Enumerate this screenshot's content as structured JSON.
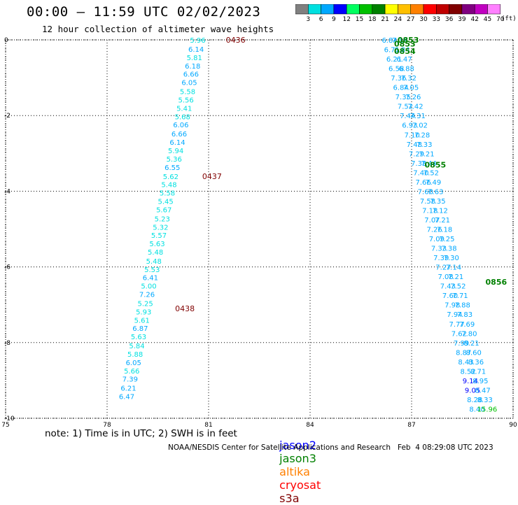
{
  "title": "00:00 – 11:59 UTC 02/02/2023",
  "subtitle": "12 hour collection of altimeter wave heights",
  "colorbar": {
    "unit": "(ft)",
    "bins": [
      {
        "label": "3",
        "color": "#808080"
      },
      {
        "label": "6",
        "color": "#00e0e0"
      },
      {
        "label": "9",
        "color": "#00a8ff"
      },
      {
        "label": "12",
        "color": "#0000ff"
      },
      {
        "label": "15",
        "color": "#00ff60"
      },
      {
        "label": "18",
        "color": "#00c000"
      },
      {
        "label": "21",
        "color": "#008000"
      },
      {
        "label": "24",
        "color": "#ffff00"
      },
      {
        "label": "27",
        "color": "#ffc000"
      },
      {
        "label": "30",
        "color": "#ff8000"
      },
      {
        "label": "33",
        "color": "#ff0000"
      },
      {
        "label": "36",
        "color": "#c00000"
      },
      {
        "label": "39",
        "color": "#800000"
      },
      {
        "label": "42",
        "color": "#800080"
      },
      {
        "label": "45",
        "color": "#c000c0"
      },
      {
        "label": "70",
        "color": "#ff80ff"
      }
    ]
  },
  "note": "note: 1) Time is in UTC; 2) SWH is in feet",
  "satellites": [
    {
      "name": "jason2",
      "color": "#0000ff"
    },
    {
      "name": "jason3",
      "color": "#008000"
    },
    {
      "name": "altika",
      "color": "#ff8000"
    },
    {
      "name": "cryosat",
      "color": "#ff0000"
    },
    {
      "name": "s3a",
      "color": "#800000"
    }
  ],
  "credit": "NOAA/NESDIS Center for Satellite Applications and Research   Feb  4 08:29:08 UTC 2023",
  "chart_data": {
    "type": "scatter",
    "xlim": [
      75,
      90
    ],
    "ylim": [
      -10,
      0
    ],
    "x_ticks": [
      "75",
      "78",
      "81",
      "84",
      "87",
      "90"
    ],
    "y_ticks": [
      "0",
      "-2",
      "-4",
      "-6",
      "-8",
      "-10"
    ],
    "grid": true,
    "series": [
      {
        "satellite": "s3a",
        "label_color": "#800000",
        "times": [
          {
            "label": "0436",
            "x": 81.8,
            "y": 0
          },
          {
            "label": "0437",
            "x": 81.1,
            "y": -3.6
          },
          {
            "label": "0438",
            "x": 80.3,
            "y": -7.1
          }
        ],
        "points": [
          {
            "x": 80.68,
            "y": 0.0,
            "swh": 5.96
          },
          {
            "x": 80.63,
            "y": -0.24,
            "swh": 6.14
          },
          {
            "x": 80.58,
            "y": -0.46,
            "swh": 5.81
          },
          {
            "x": 80.53,
            "y": -0.68,
            "swh": 6.18
          },
          {
            "x": 80.48,
            "y": -0.9,
            "swh": 6.66
          },
          {
            "x": 80.43,
            "y": -1.12,
            "swh": 6.05
          },
          {
            "x": 80.38,
            "y": -1.36,
            "swh": 5.58
          },
          {
            "x": 80.33,
            "y": -1.58,
            "swh": 5.56
          },
          {
            "x": 80.28,
            "y": -1.8,
            "swh": 5.41
          },
          {
            "x": 80.23,
            "y": -2.02,
            "swh": 5.68
          },
          {
            "x": 80.18,
            "y": -2.24,
            "swh": 6.06
          },
          {
            "x": 80.13,
            "y": -2.48,
            "swh": 6.66
          },
          {
            "x": 80.08,
            "y": -2.7,
            "swh": 6.14
          },
          {
            "x": 80.03,
            "y": -2.92,
            "swh": 5.94
          },
          {
            "x": 79.98,
            "y": -3.14,
            "swh": 5.36
          },
          {
            "x": 79.93,
            "y": -3.36,
            "swh": 6.55
          },
          {
            "x": 79.88,
            "y": -3.6,
            "swh": 5.62
          },
          {
            "x": 79.83,
            "y": -3.82,
            "swh": 5.48
          },
          {
            "x": 79.78,
            "y": -4.04,
            "swh": 5.58
          },
          {
            "x": 79.73,
            "y": -4.26,
            "swh": 5.45
          },
          {
            "x": 79.68,
            "y": -4.48,
            "swh": 5.67
          },
          {
            "x": 79.63,
            "y": -4.72,
            "swh": 5.23
          },
          {
            "x": 79.58,
            "y": -4.94,
            "swh": 5.32
          },
          {
            "x": 79.53,
            "y": -5.16,
            "swh": 5.57
          },
          {
            "x": 79.48,
            "y": -5.38,
            "swh": 5.63
          },
          {
            "x": 79.43,
            "y": -5.6,
            "swh": 5.48
          },
          {
            "x": 79.38,
            "y": -5.84,
            "swh": 5.48
          },
          {
            "x": 79.33,
            "y": -6.06,
            "swh": 5.53
          },
          {
            "x": 79.28,
            "y": -6.28,
            "swh": 6.41
          },
          {
            "x": 79.23,
            "y": -6.5,
            "swh": 5.0
          },
          {
            "x": 79.18,
            "y": -6.72,
            "swh": 7.26
          },
          {
            "x": 79.13,
            "y": -6.96,
            "swh": 5.25
          },
          {
            "x": 79.08,
            "y": -7.18,
            "swh": 5.93
          },
          {
            "x": 79.03,
            "y": -7.4,
            "swh": 5.61
          },
          {
            "x": 78.98,
            "y": -7.62,
            "swh": 6.87
          },
          {
            "x": 78.93,
            "y": -7.84,
            "swh": 5.63
          },
          {
            "x": 78.88,
            "y": -8.08,
            "swh": 5.84
          },
          {
            "x": 78.83,
            "y": -8.3,
            "swh": 5.88
          },
          {
            "x": 78.78,
            "y": -8.52,
            "swh": 6.05
          },
          {
            "x": 78.73,
            "y": -8.74,
            "swh": 5.66
          },
          {
            "x": 78.68,
            "y": -8.96,
            "swh": 7.39
          },
          {
            "x": 78.63,
            "y": -9.2,
            "swh": 6.21
          },
          {
            "x": 78.58,
            "y": -9.42,
            "swh": 6.47
          }
        ]
      },
      {
        "satellite": "jason3",
        "label_color": "#008000",
        "times": [
          {
            "label": "0853",
            "x": 86.9,
            "y": 0
          },
          {
            "label": "0853",
            "x": 86.8,
            "y": -0.1
          },
          {
            "label": "0854",
            "x": 86.8,
            "y": -0.3
          },
          {
            "label": "0855",
            "x": 87.7,
            "y": -3.3
          },
          {
            "label": "0856",
            "x": 89.5,
            "y": -6.4
          }
        ],
        "points_a": [
          {
            "y": 0.0,
            "swh": 6.84
          },
          {
            "y": -0.25,
            "swh": 6.71
          },
          {
            "y": -0.5,
            "swh": 6.21
          },
          {
            "y": -0.75,
            "swh": 6.58
          },
          {
            "y": -1.0,
            "swh": 7.36
          },
          {
            "y": -1.25,
            "swh": 6.84
          },
          {
            "y": -1.5,
            "swh": 7.35
          },
          {
            "y": -1.75,
            "swh": 7.52
          },
          {
            "y": -2.0,
            "swh": 7.44
          },
          {
            "y": -2.25,
            "swh": 6.93
          },
          {
            "y": -2.5,
            "swh": 7.1
          },
          {
            "y": -2.75,
            "swh": 7.48
          },
          {
            "y": -3.0,
            "swh": 7.29
          },
          {
            "y": -3.25,
            "swh": 7.38
          },
          {
            "y": -3.5,
            "swh": 7.4
          },
          {
            "y": -3.75,
            "swh": 7.66
          },
          {
            "y": -4.0,
            "swh": 7.6
          },
          {
            "y": -4.25,
            "swh": 7.58
          },
          {
            "y": -4.5,
            "swh": 7.18
          },
          {
            "y": -4.75,
            "swh": 7.07
          },
          {
            "y": -5.0,
            "swh": 7.26
          },
          {
            "y": -5.25,
            "swh": 7.09
          },
          {
            "y": -5.5,
            "swh": 7.33
          },
          {
            "y": -5.75,
            "swh": 7.39
          },
          {
            "y": -6.0,
            "swh": 7.27
          },
          {
            "y": -6.25,
            "swh": 7.08
          },
          {
            "y": -6.5,
            "swh": 7.43
          },
          {
            "y": -6.75,
            "swh": 7.6
          },
          {
            "y": -7.0,
            "swh": 7.98
          },
          {
            "y": -7.25,
            "swh": 7.94
          },
          {
            "y": -7.5,
            "swh": 7.77
          },
          {
            "y": -7.75,
            "swh": 7.62
          },
          {
            "y": -8.0,
            "swh": 7.99
          },
          {
            "y": -8.25,
            "swh": 8.87
          },
          {
            "y": -8.5,
            "swh": 8.43
          },
          {
            "y": -8.75,
            "swh": 8.52
          },
          {
            "y": -9.0,
            "swh": 9.14
          },
          {
            "y": -9.25,
            "swh": 9.05
          },
          {
            "y": -9.5,
            "swh": 8.28
          },
          {
            "y": -9.75,
            "swh": 8.4
          }
        ],
        "points_b": [
          {
            "y": 0.0,
            "swh": 7.19
          },
          {
            "y": -0.25,
            "swh": 6.84
          },
          {
            "y": -0.5,
            "swh": 6.47
          },
          {
            "y": -0.75,
            "swh": 6.88
          },
          {
            "y": -1.0,
            "swh": 7.32
          },
          {
            "y": -1.25,
            "swh": 7.05
          },
          {
            "y": -1.5,
            "swh": 7.26
          },
          {
            "y": -1.75,
            "swh": 7.42
          },
          {
            "y": -2.0,
            "swh": 7.31
          },
          {
            "y": -2.25,
            "swh": 7.02
          },
          {
            "y": -2.5,
            "swh": 7.28
          },
          {
            "y": -2.75,
            "swh": 7.33
          },
          {
            "y": -3.0,
            "swh": 7.21
          },
          {
            "y": -3.25,
            "swh": 7.44
          },
          {
            "y": -3.5,
            "swh": 7.52
          },
          {
            "y": -3.75,
            "swh": 7.49
          },
          {
            "y": -4.0,
            "swh": 7.63
          },
          {
            "y": -4.25,
            "swh": 7.35
          },
          {
            "y": -4.5,
            "swh": 7.12
          },
          {
            "y": -4.75,
            "swh": 7.21
          },
          {
            "y": -5.0,
            "swh": 7.18
          },
          {
            "y": -5.25,
            "swh": 7.25
          },
          {
            "y": -5.5,
            "swh": 7.38
          },
          {
            "y": -5.75,
            "swh": 7.3
          },
          {
            "y": -6.0,
            "swh": 7.14
          },
          {
            "y": -6.25,
            "swh": 7.21
          },
          {
            "y": -6.5,
            "swh": 7.52
          },
          {
            "y": -6.75,
            "swh": 7.71
          },
          {
            "y": -7.0,
            "swh": 7.88
          },
          {
            "y": -7.25,
            "swh": 7.83
          },
          {
            "y": -7.5,
            "swh": 7.69
          },
          {
            "y": -7.75,
            "swh": 7.8
          },
          {
            "y": -8.0,
            "swh": 8.21
          },
          {
            "y": -8.25,
            "swh": 8.6
          },
          {
            "y": -8.5,
            "swh": 8.36
          },
          {
            "y": -8.75,
            "swh": 8.71
          },
          {
            "y": -9.0,
            "swh": 8.95
          },
          {
            "y": -9.25,
            "swh": 8.47
          },
          {
            "y": -9.5,
            "swh": 8.33
          },
          {
            "y": -9.75,
            "swh": 15.96
          }
        ]
      }
    ]
  }
}
